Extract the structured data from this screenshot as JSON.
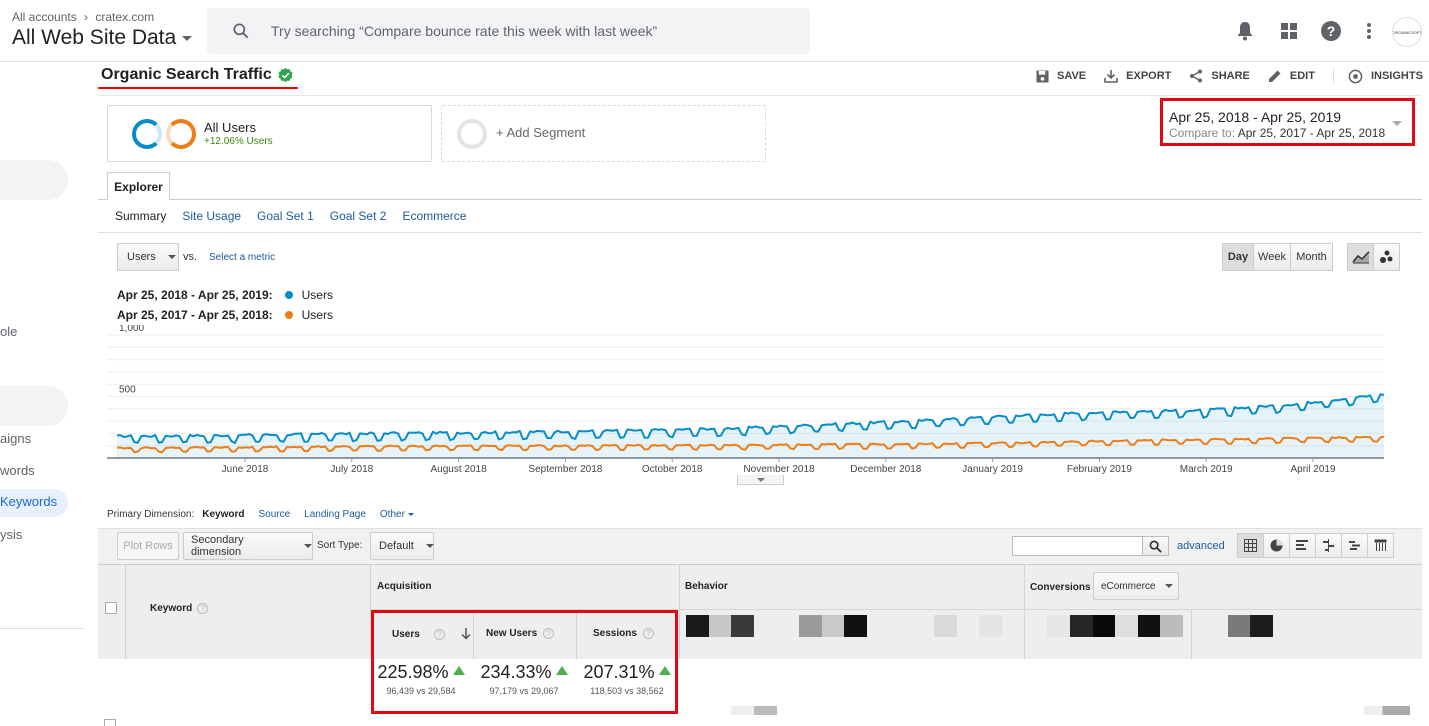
{
  "header": {
    "breadcrumb_all": "All accounts",
    "breadcrumb_sep": "›",
    "breadcrumb_site": "cratex.com",
    "view_name": "All Web Site Data",
    "search_placeholder": "Try searching “Compare bounce rate this week with last week”",
    "avatar_text": "ORGANICSOFT"
  },
  "leftnav": {
    "items": [
      "ole",
      "aigns",
      "words",
      "Keywords",
      "ysis"
    ],
    "active_index": 3
  },
  "report": {
    "title": "Organic Search Traffic",
    "actions": {
      "save": "SAVE",
      "export": "EXPORT",
      "share": "SHARE",
      "edit": "EDIT",
      "insights": "INSIGHTS"
    }
  },
  "segments": {
    "all_users": "All Users",
    "all_users_change": "+12.06% Users",
    "add_segment": "+ Add Segment"
  },
  "date_range": {
    "main": "Apr 25, 2018 - Apr 25, 2019",
    "compare_label": "Compare to:",
    "compare_range": "Apr 25, 2017 - Apr 25, 2018"
  },
  "explorer": {
    "tab": "Explorer",
    "subtabs": [
      "Summary",
      "Site Usage",
      "Goal Set 1",
      "Goal Set 2",
      "Ecommerce"
    ],
    "metric": "Users",
    "vs": "vs.",
    "select_metric": "Select a metric",
    "periods": [
      "Day",
      "Week",
      "Month"
    ],
    "active_period": "Day"
  },
  "legend": [
    {
      "range": "Apr 25, 2018 - Apr 25, 2019:",
      "metric": "Users",
      "color": "#058dc7"
    },
    {
      "range": "Apr 25, 2017 - Apr 25, 2018:",
      "metric": "Users",
      "color": "#ed7e17"
    }
  ],
  "chart_data": {
    "type": "line",
    "ylim": [
      0,
      1000
    ],
    "y_ticks": [
      "1,000",
      "500"
    ],
    "x_tick_labels": [
      "June 2018",
      "July 2018",
      "August 2018",
      "September 2018",
      "October 2018",
      "November 2018",
      "December 2018",
      "January 2019",
      "February 2019",
      "March 2019",
      "April 2019"
    ],
    "series": [
      {
        "color": "#058dc7",
        "values": [
          160,
          165,
          175,
          185,
          190,
          200,
          210,
          230,
          260,
          290,
          330,
          360,
          370,
          420,
          500
        ]
      },
      {
        "color": "#ed7e17",
        "values": [
          70,
          75,
          80,
          85,
          88,
          90,
          92,
          95,
          100,
          105,
          115,
          130,
          140,
          150,
          160
        ]
      }
    ],
    "grid": true
  },
  "table": {
    "primary_dimension_label": "Primary Dimension:",
    "dims": [
      "Keyword",
      "Source",
      "Landing Page",
      "Other"
    ],
    "plot_rows": "Plot Rows",
    "secondary_dimension": "Secondary dimension",
    "sort_type_label": "Sort Type:",
    "sort_type": "Default",
    "advanced": "advanced",
    "keyword_header": "Keyword",
    "acquisition": "Acquisition",
    "behavior": "Behavior",
    "conversions": "Conversions",
    "conversions_select": "eCommerce",
    "metrics": [
      {
        "label": "Users",
        "pct": "225.98%",
        "sub": "96,439 vs 29,584"
      },
      {
        "label": "New Users",
        "pct": "234.33%",
        "sub": "97,179 vs 29,067"
      },
      {
        "label": "Sessions",
        "pct": "207.31%",
        "sub": "118,503 vs 38,562"
      }
    ]
  }
}
